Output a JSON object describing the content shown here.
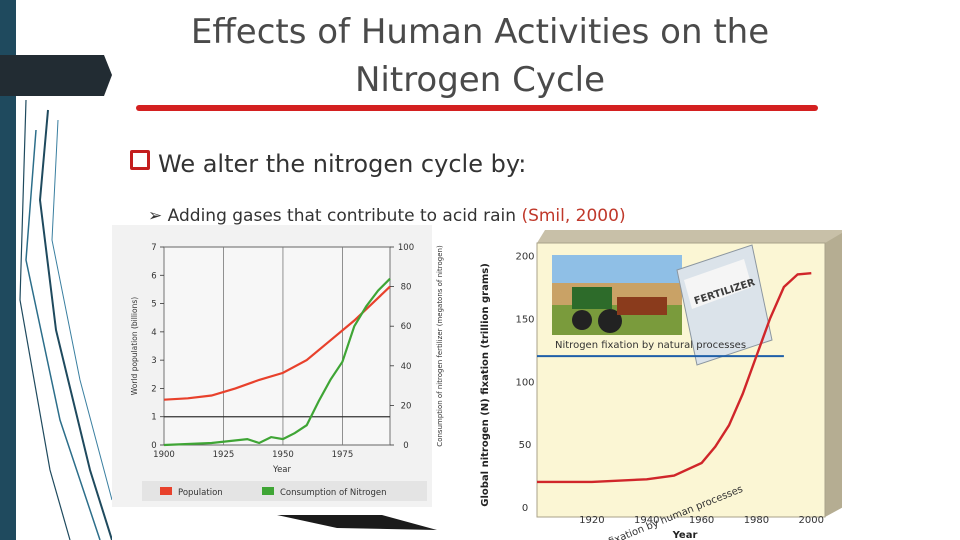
{
  "slide": {
    "title": "Effects of Human Activities on the Nitrogen Cycle",
    "bullet_main": "We alter the nitrogen cycle by:",
    "bullet_sub": "Adding gases that contribute to acid rain",
    "citation": "(Smil, 2000)"
  },
  "colors": {
    "accent_red": "#d42020",
    "population": "#e8412c",
    "nitrogen_green": "#3fa535",
    "natural_blue": "#1f5fa8",
    "human_red": "#d0262a",
    "deco_dark": "#1f4a5e"
  },
  "chart_data": [
    {
      "type": "line",
      "title": "",
      "xlabel": "Year",
      "ylabel_left": "World population (billions)",
      "ylabel_right": "Consumption of nitrogen fertilizer (megatons of nitrogen)",
      "x_ticks": [
        "1900",
        "1925",
        "1950",
        "1975"
      ],
      "y_left_ticks": [
        "0",
        "1",
        "2",
        "3",
        "4",
        "5",
        "6",
        "7"
      ],
      "y_right_ticks": [
        "0",
        "20",
        "40",
        "60",
        "80",
        "100"
      ],
      "xlim": [
        1900,
        1995
      ],
      "ylim_left": [
        0,
        7
      ],
      "ylim_right": [
        0,
        100
      ],
      "legend_placement": "bottom",
      "series": [
        {
          "name": "Population",
          "axis": "left",
          "x": [
            1900,
            1910,
            1920,
            1930,
            1940,
            1950,
            1960,
            1970,
            1980,
            1990,
            1995
          ],
          "y": [
            1.6,
            1.65,
            1.75,
            2.0,
            2.3,
            2.55,
            3.0,
            3.7,
            4.4,
            5.2,
            5.6
          ]
        },
        {
          "name": "Consumption of Nitrogen",
          "axis": "right",
          "x": [
            1900,
            1920,
            1935,
            1940,
            1945,
            1950,
            1955,
            1960,
            1965,
            1970,
            1975,
            1980,
            1985,
            1990,
            1995
          ],
          "y": [
            0,
            1,
            3,
            1,
            4,
            3,
            6,
            10,
            22,
            33,
            42,
            60,
            70,
            78,
            84
          ]
        }
      ]
    },
    {
      "type": "line",
      "title": "",
      "xlabel": "Year",
      "ylabel": "Global nitrogen (N) fixation (trillion grams)",
      "x_ticks": [
        "1920",
        "1940",
        "1960",
        "1980",
        "2000"
      ],
      "y_ticks": [
        "0",
        "50",
        "100",
        "150",
        "200"
      ],
      "xlim": [
        1900,
        2005
      ],
      "ylim": [
        0,
        210
      ],
      "annotations": [
        "Nitrogen fixation by natural processes",
        "Nitrogen fixation by human processes"
      ],
      "series": [
        {
          "name": "Nitrogen fixation by natural processes",
          "x": [
            1900,
            1990
          ],
          "y": [
            120,
            120
          ]
        },
        {
          "name": "Nitrogen fixation by human processes",
          "x": [
            1900,
            1920,
            1940,
            1950,
            1960,
            1965,
            1970,
            1975,
            1980,
            1985,
            1990,
            1995,
            2000
          ],
          "y": [
            20,
            20,
            22,
            25,
            35,
            48,
            65,
            90,
            120,
            150,
            175,
            185,
            186
          ]
        }
      ]
    }
  ],
  "fertilizer_bag_text": "FERTILIZER"
}
